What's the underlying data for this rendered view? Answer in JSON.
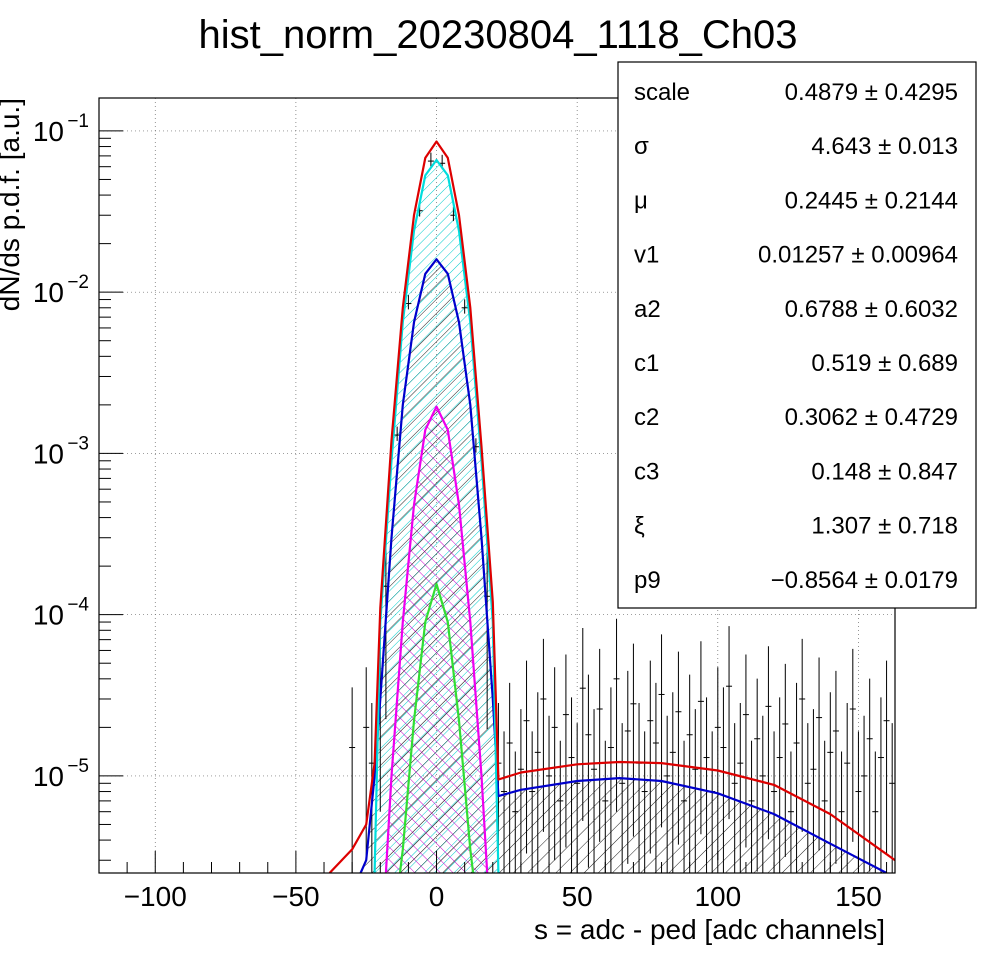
{
  "chart_data": {
    "type": "line",
    "title": "hist_norm_20230804_1118_Ch03",
    "xlabel": "s = adc - ped [adc channels]",
    "ylabel": "dN/ds p.d.f. [a.u.]",
    "xlim": [
      -120,
      163
    ],
    "ylim": [
      2.5e-06,
      0.16
    ],
    "yscale": "log",
    "grid": true,
    "legend": "top-right",
    "x_ticks": [
      -100,
      -50,
      0,
      50,
      100,
      150
    ],
    "x_tick_labels": [
      "−100",
      "−50",
      "0",
      "50",
      "100",
      "150"
    ],
    "y_ticks": [
      {
        "value": 1e-05,
        "base": "10",
        "exp": "−5"
      },
      {
        "value": 0.0001,
        "base": "10",
        "exp": "−4"
      },
      {
        "value": 0.001,
        "base": "10",
        "exp": "−3"
      },
      {
        "value": 0.01,
        "base": "10",
        "exp": "−2"
      },
      {
        "value": 0.1,
        "base": "10",
        "exp": "−1"
      }
    ],
    "stats": [
      {
        "name": "scale",
        "value": "0.4879 ± 0.4295"
      },
      {
        "name": "σ",
        "value": "4.643 ± 0.013"
      },
      {
        "name": "μ",
        "value": "0.2445 ± 0.2144"
      },
      {
        "name": "v1",
        "value": "0.01257 ± 0.00964"
      },
      {
        "name": "a2",
        "value": "0.6788 ± 0.6032"
      },
      {
        "name": "c1",
        "value": "0.519 ± 0.689"
      },
      {
        "name": "c2",
        "value": "0.3062 ± 0.4729"
      },
      {
        "name": "c3",
        "value": "0.148 ± 0.847"
      },
      {
        "name": "ξ",
        "value": "1.307 ± 0.718"
      },
      {
        "name": "p9",
        "value": "−0.8564 ± 0.0179"
      }
    ],
    "series": [
      {
        "color": "#dd0000",
        "fill": "none",
        "x": [
          -38,
          -30,
          -25,
          -22,
          -20,
          -16,
          -12,
          -8,
          -4,
          0,
          4,
          8,
          12,
          16,
          20,
          22,
          30,
          50,
          65,
          80,
          100,
          120,
          140,
          163
        ],
        "y": [
          2.5e-06,
          3.5e-06,
          5e-06,
          1.2e-05,
          0.00011,
          0.0012,
          0.008,
          0.03,
          0.068,
          0.086,
          0.068,
          0.03,
          0.008,
          0.0011,
          0.00012,
          9.5e-06,
          1.05e-05,
          1.18e-05,
          1.22e-05,
          1.2e-05,
          1.08e-05,
          8.8e-06,
          5.8e-06,
          3e-06
        ]
      },
      {
        "color": "#00dddd",
        "fill": "cyan-hatch",
        "x": [
          -22,
          -20,
          -16,
          -12,
          -8,
          -4,
          0,
          4,
          8,
          12,
          16,
          20,
          22
        ],
        "y": [
          2.5e-06,
          9e-05,
          0.0009,
          0.0065,
          0.024,
          0.053,
          0.066,
          0.053,
          0.024,
          0.0065,
          0.0009,
          9e-05,
          2.5e-06
        ]
      },
      {
        "color": "#0000cc",
        "fill": "dark-hatch",
        "x": [
          -27,
          -25,
          -22,
          -20,
          -16,
          -12,
          -8,
          -4,
          0,
          4,
          8,
          12,
          16,
          20,
          22,
          30,
          50,
          65,
          80,
          100,
          120,
          140,
          160
        ],
        "y": [
          2.5e-06,
          3e-06,
          1e-05,
          3e-05,
          0.0003,
          0.002,
          0.0065,
          0.013,
          0.016,
          0.013,
          0.0065,
          0.002,
          0.0003,
          3e-05,
          7.5e-06,
          8.2e-06,
          9.3e-06,
          9.7e-06,
          9.3e-06,
          7.8e-06,
          5.8e-06,
          3.8e-06,
          2.5e-06
        ]
      },
      {
        "color": "#ee00ee",
        "fill": "magenta-cross",
        "x": [
          -18,
          -16,
          -12,
          -8,
          -4,
          0,
          4,
          8,
          12,
          16,
          18
        ],
        "y": [
          2.5e-06,
          1e-05,
          9e-05,
          0.00048,
          0.0014,
          0.00195,
          0.0014,
          0.00048,
          9e-05,
          1e-05,
          2.5e-06
        ]
      },
      {
        "color": "#33dd33",
        "fill": "none",
        "x": [
          -13,
          -12,
          -8,
          -4,
          0,
          4,
          8,
          12,
          13
        ],
        "y": [
          2.5e-06,
          3.5e-06,
          2.2e-05,
          9e-05,
          0.000155,
          9e-05,
          2.2e-05,
          3.5e-06,
          2.5e-06
        ]
      }
    ],
    "data_points": {
      "x": [
        -30,
        -25,
        -23,
        -20,
        -18,
        -14,
        -10,
        -6,
        -2,
        2,
        6,
        10,
        14,
        18,
        22,
        24,
        26,
        28,
        30,
        32,
        34,
        36,
        38,
        40,
        42,
        44,
        46,
        48,
        50,
        52,
        54,
        56,
        58,
        60,
        62,
        64,
        66,
        68,
        70,
        72,
        74,
        76,
        78,
        80,
        82,
        84,
        86,
        88,
        90,
        92,
        94,
        96,
        98,
        100,
        102,
        104,
        106,
        108,
        110,
        112,
        114,
        116,
        118,
        120,
        122,
        124,
        126,
        128,
        130,
        132,
        134,
        136,
        138,
        140,
        142,
        144,
        146,
        148,
        150,
        152,
        154,
        156,
        158,
        160,
        162
      ],
      "y": [
        1.5e-05,
        2e-05,
        1.2e-05,
        4e-05,
        0.00015,
        0.0013,
        0.0085,
        0.032,
        0.065,
        0.063,
        0.03,
        0.008,
        0.0011,
        0.00013,
        1.2e-05,
        8e-06,
        1.6e-05,
        6e-06,
        1.1e-05,
        2.2e-05,
        8e-06,
        1.4e-05,
        3e-05,
        1e-05,
        2e-05,
        7e-06,
        2.4e-05,
        1.3e-05,
        9e-06,
        3.5e-05,
        1.8e-05,
        1.1e-05,
        2.6e-05,
        7e-06,
        1.5e-05,
        4e-05,
        9e-06,
        1.9e-05,
        2.8e-05,
        1.2e-05,
        8e-06,
        2.2e-05,
        1.6e-05,
        3.2e-05,
        1e-05,
        1.4e-05,
        2.5e-05,
        7e-06,
        1.8e-05,
        1.1e-05,
        2.9e-05,
        1.3e-05,
        8e-06,
        2e-05,
        1.5e-05,
        3.6e-05,
        9e-06,
        1.2e-05,
        2.4e-05,
        7e-06,
        1.7e-05,
        1e-05,
        2.7e-05,
        8e-06,
        1.3e-05,
        2.1e-05,
        6e-06,
        1.6e-05,
        3e-05,
        9e-06,
        1.1e-05,
        2.3e-05,
        7e-06,
        1.4e-05,
        1.9e-05,
        6e-06,
        1.2e-05,
        2.6e-05,
        8e-06,
        1e-05,
        1.7e-05,
        6e-06,
        1.3e-05,
        2.2e-05,
        9e-06
      ]
    }
  }
}
